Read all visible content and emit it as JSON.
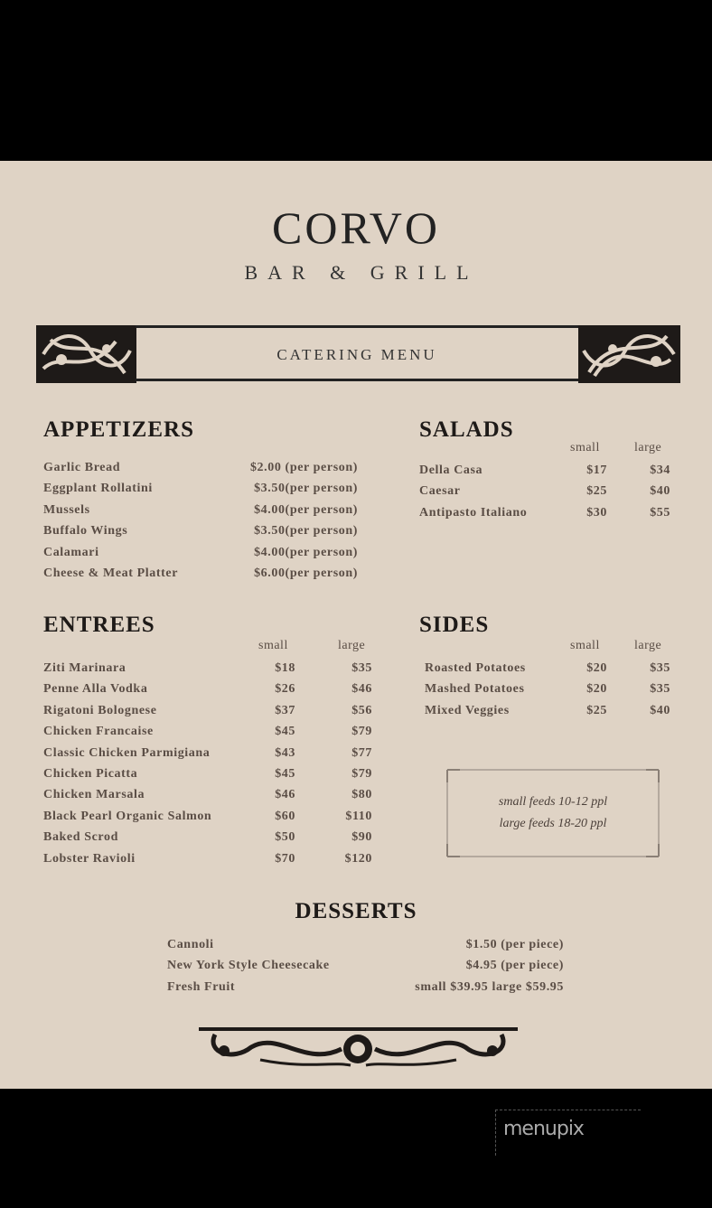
{
  "header": {
    "title": "CORVO",
    "subtitle": "BAR & GRILL",
    "banner": "CATERING MENU"
  },
  "appetizers": {
    "title": "APPETIZERS",
    "items": [
      {
        "name": "Garlic Bread",
        "price": "$2.00 (per person)"
      },
      {
        "name": "Eggplant Rollatini",
        "price": "$3.50(per person)"
      },
      {
        "name": "Mussels",
        "price": "$4.00(per person)"
      },
      {
        "name": "Buffalo Wings",
        "price": "$3.50(per person)"
      },
      {
        "name": "Calamari",
        "price": "$4.00(per person)"
      },
      {
        "name": "Cheese & Meat Platter",
        "price": "$6.00(per person)"
      }
    ]
  },
  "salads": {
    "title": "SALADS",
    "small_label": "small",
    "large_label": "large",
    "items": [
      {
        "name": "Della Casa",
        "small": "$17",
        "large": "$34"
      },
      {
        "name": "Caesar",
        "small": "$25",
        "large": "$40"
      },
      {
        "name": "Antipasto Italiano",
        "small": "$30",
        "large": "$55"
      }
    ]
  },
  "entrees": {
    "title": "ENTREES",
    "small_label": "small",
    "large_label": "large",
    "items": [
      {
        "name": "Ziti Marinara",
        "small": "$18",
        "large": "$35"
      },
      {
        "name": "Penne Alla Vodka",
        "small": "$26",
        "large": "$46"
      },
      {
        "name": "Rigatoni Bolognese",
        "small": "$37",
        "large": "$56"
      },
      {
        "name": "Chicken Francaise",
        "small": "$45",
        "large": "$79"
      },
      {
        "name": "Classic Chicken Parmigiana",
        "small": "$43",
        "large": "$77"
      },
      {
        "name": "Chicken Picatta",
        "small": "$45",
        "large": "$79"
      },
      {
        "name": "Chicken Marsala",
        "small": "$46",
        "large": "$80"
      },
      {
        "name": "Black Pearl Organic Salmon",
        "small": "$60",
        "large": "$110"
      },
      {
        "name": "Baked Scrod",
        "small": "$50",
        "large": "$90"
      },
      {
        "name": "Lobster Ravioli",
        "small": "$70",
        "large": "$120"
      }
    ]
  },
  "sides": {
    "title": "SIDES",
    "small_label": "small",
    "large_label": "large",
    "items": [
      {
        "name": "Roasted Potatoes",
        "small": "$20",
        "large": "$35"
      },
      {
        "name": "Mashed Potatoes",
        "small": "$20",
        "large": "$35"
      },
      {
        "name": "Mixed Veggies",
        "small": "$25",
        "large": "$40"
      }
    ]
  },
  "note": {
    "line1": "small feeds 10-12 ppl",
    "line2": "large feeds 18-20 ppl"
  },
  "desserts": {
    "title": "DESSERTS",
    "items": [
      {
        "name": "Cannoli",
        "price": "$1.50 (per piece)"
      },
      {
        "name": "New York Style Cheesecake",
        "price": "$4.95 (per piece)"
      },
      {
        "name": "Fresh Fruit",
        "price": "small $39.95 large $59.95"
      }
    ]
  },
  "watermark": "menupix"
}
